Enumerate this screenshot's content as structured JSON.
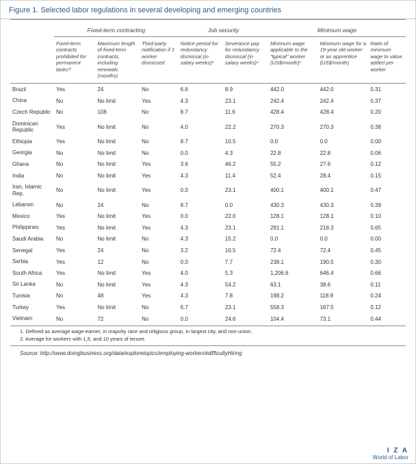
{
  "title": "Figure 1. Selected labor regulations in several developing and emerging countries",
  "groups": {
    "g1": "Fixed-term contracting",
    "g2": "Job security",
    "g3": "Minimum wage"
  },
  "headers": {
    "h1": "Fixed-term contracts prohibited for permanent tasks?",
    "h2": "Maximum length of fixed-term contracts, including renewals (months)",
    "h3": "Third-party notification if 1 worker dismissed",
    "h4": "Notice period for redundancy dismissal (in salary weeks)²",
    "h5": "Severance pay for redundancy dismissal (in salary weeks)²",
    "h6": "Minimum wage applicable to the \"typical\" worker (US$/month)¹",
    "h7": "Minimum wage for a 19-year old worker or an apprentice (US$/month)",
    "h8": "Ratio of minimum wage to value added per worker"
  },
  "rows": [
    {
      "c": "Brazil",
      "v": [
        "Yes",
        "24",
        "No",
        "6.6",
        "8.9",
        "442.0",
        "442.0",
        "0.31"
      ]
    },
    {
      "c": "China",
      "v": [
        "No",
        "No limit",
        "Yes",
        "4.3",
        "23.1",
        "242.4",
        "242.4",
        "0.37"
      ]
    },
    {
      "c": "Czech Republic",
      "v": [
        "No",
        "108",
        "No",
        "8.7",
        "11.6",
        "428.4",
        "428.4",
        "0.20"
      ]
    },
    {
      "c": "Dominican Republic",
      "v": [
        "Yes",
        "No limit",
        "No",
        "4.0",
        "22.2",
        "270.3",
        "270.3",
        "0.38"
      ]
    },
    {
      "c": "Ethiopia",
      "v": [
        "Yes",
        "No limit",
        "No",
        "8.7",
        "10.5",
        "0.0",
        "0.0",
        "0.00"
      ]
    },
    {
      "c": "Georgia",
      "v": [
        "No",
        "No limit",
        "No",
        "0.0",
        "4.3",
        "22.8",
        "22.8",
        "0.06"
      ]
    },
    {
      "c": "Ghana",
      "v": [
        "No",
        "No limit",
        "Yes",
        "3.6",
        "46.2",
        "55.2",
        "27.6",
        "0.12"
      ]
    },
    {
      "c": "India",
      "v": [
        "No",
        "No limit",
        "Yes",
        "4.3",
        "11.4",
        "52.4",
        "28.4",
        "0.15"
      ]
    },
    {
      "c": "Iran, Islamic Rep.",
      "v": [
        "No",
        "No limit",
        "Yes",
        "0.0",
        "23.1",
        "400.1",
        "400.1",
        "0.47"
      ]
    },
    {
      "c": "Lebanon",
      "v": [
        "No",
        "24",
        "No",
        "8.7",
        "0.0",
        "430.3",
        "430.3",
        "0.39"
      ]
    },
    {
      "c": "Mexico",
      "v": [
        "Yes",
        "No limit",
        "Yes",
        "0.0",
        "22.0",
        "128.1",
        "128.1",
        "0.10"
      ]
    },
    {
      "c": "Philippines",
      "v": [
        "Yes",
        "No limit",
        "Yes",
        "4.3",
        "23.1",
        "291.1",
        "218.3",
        "0.65"
      ]
    },
    {
      "c": "Saudi Arabia",
      "v": [
        "No",
        "No limit",
        "No",
        "4.3",
        "15.2",
        "0.0",
        "0.0",
        "0.00"
      ]
    },
    {
      "c": "Senegal",
      "v": [
        "Yes",
        "24",
        "No",
        "3.2",
        "10.5",
        "72.4",
        "72.4",
        "0.45"
      ]
    },
    {
      "c": "Serbia",
      "v": [
        "Yes",
        "12",
        "No",
        "0.0",
        "7.7",
        "238.1",
        "190.5",
        "0.30"
      ]
    },
    {
      "c": "South Africa",
      "v": [
        "Yes",
        "No limit",
        "Yes",
        "4.0",
        "5.3",
        "1,206.6",
        "646.4",
        "0.66"
      ]
    },
    {
      "c": "Sri Lanka",
      "v": [
        "No",
        "No limit",
        "Yes",
        "4.3",
        "54.2",
        "63.1",
        "38.6",
        "0.11"
      ]
    },
    {
      "c": "Tunisia",
      "v": [
        "No",
        "48",
        "Yes",
        "4.3",
        "7.8",
        "198.2",
        "118.9",
        "0.24"
      ]
    },
    {
      "c": "Turkey",
      "v": [
        "Yes",
        "No limit",
        "No",
        "6.7",
        "23.1",
        "558.3",
        "167.5",
        "0.12"
      ]
    },
    {
      "c": "Vietnam",
      "v": [
        "No",
        "72",
        "No",
        "0.0",
        "24.6",
        "104.4",
        "73.1",
        "0.44"
      ]
    }
  ],
  "footnotes": {
    "f1": "1. Defined as average wage-earner, in majority race and religious group, in largest city, and non-union.",
    "f2": "2. Average for workers with 1,5, and 10 years of tenure."
  },
  "source_label": "Source",
  "source_text": ": http://www.doingbusiness.org/data/exploretopics/employing-workers#difficultyHiring",
  "footer": {
    "iza": "I Z A",
    "wol": "World of Labor"
  }
}
